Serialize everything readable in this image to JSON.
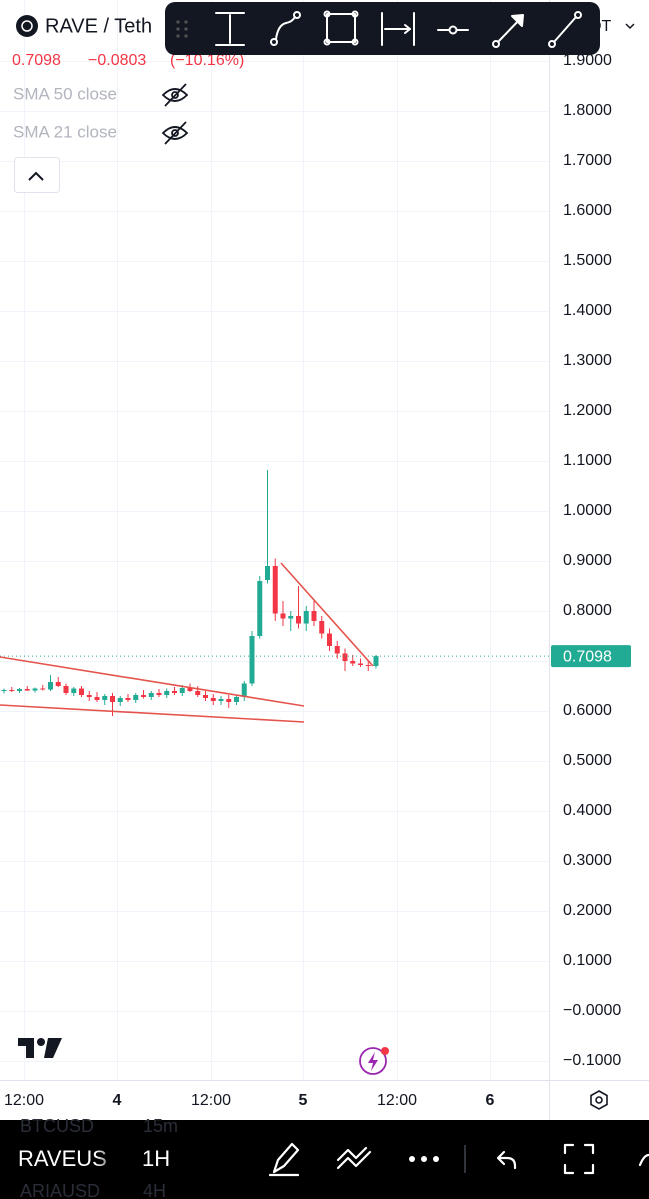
{
  "header": {
    "symbol": "RAVE / Teth",
    "symbol_tail": "DT",
    "change": "−0.0803",
    "change_pct": "(−10.16%)"
  },
  "indicators": [
    "SMA 50 close",
    "SMA 21 close"
  ],
  "chart": {
    "type": "candlestick",
    "up_color": "#22ab94",
    "down_color": "#f23645",
    "ylim": [
      -0.1,
      1.9
    ],
    "yticks": [
      {
        "value": 1.9,
        "label": "1.9000"
      },
      {
        "value": 1.8,
        "label": "1.8000"
      },
      {
        "value": 1.7,
        "label": "1.7000"
      },
      {
        "value": 1.6,
        "label": "1.6000"
      },
      {
        "value": 1.5,
        "label": "1.5000"
      },
      {
        "value": 1.4,
        "label": "1.4000"
      },
      {
        "value": 1.3,
        "label": "1.3000"
      },
      {
        "value": 1.2,
        "label": "1.2000"
      },
      {
        "value": 1.1,
        "label": "1.1000"
      },
      {
        "value": 1.0,
        "label": "1.0000"
      },
      {
        "value": 0.9,
        "label": "0.9000"
      },
      {
        "value": 0.8,
        "label": "0.8000"
      },
      {
        "value": 0.7,
        "label": "0.7000"
      },
      {
        "value": 0.6,
        "label": "0.6000"
      },
      {
        "value": 0.5,
        "label": "0.5000"
      },
      {
        "value": 0.4,
        "label": "0.4000"
      },
      {
        "value": 0.3,
        "label": "0.3000"
      },
      {
        "value": 0.2,
        "label": "0.2000"
      },
      {
        "value": 0.1,
        "label": "0.1000"
      },
      {
        "value": 0,
        "label": "−0.0000"
      },
      {
        "value": -0.1,
        "label": "−0.1000"
      }
    ],
    "xticks": [
      "12:00",
      "4",
      "12:00",
      "5",
      "12:00",
      "6"
    ],
    "last_price": {
      "value": 0.7098,
      "label": "0.7098"
    },
    "candles": [
      [
        0.64,
        0.645,
        0.635,
        0.642
      ],
      [
        0.642,
        0.648,
        0.638,
        0.64
      ],
      [
        0.64,
        0.646,
        0.636,
        0.644
      ],
      [
        0.644,
        0.65,
        0.64,
        0.641
      ],
      [
        0.641,
        0.647,
        0.637,
        0.645
      ],
      [
        0.645,
        0.652,
        0.641,
        0.643
      ],
      [
        0.643,
        0.672,
        0.64,
        0.658
      ],
      [
        0.658,
        0.668,
        0.648,
        0.65
      ],
      [
        0.65,
        0.655,
        0.632,
        0.636
      ],
      [
        0.636,
        0.648,
        0.63,
        0.645
      ],
      [
        0.645,
        0.65,
        0.628,
        0.632
      ],
      [
        0.632,
        0.64,
        0.62,
        0.628
      ],
      [
        0.628,
        0.638,
        0.618,
        0.622
      ],
      [
        0.622,
        0.634,
        0.612,
        0.63
      ],
      [
        0.63,
        0.636,
        0.59,
        0.618
      ],
      [
        0.618,
        0.63,
        0.61,
        0.626
      ],
      [
        0.626,
        0.634,
        0.618,
        0.622
      ],
      [
        0.622,
        0.636,
        0.616,
        0.632
      ],
      [
        0.632,
        0.642,
        0.625,
        0.628
      ],
      [
        0.628,
        0.64,
        0.622,
        0.636
      ],
      [
        0.636,
        0.644,
        0.628,
        0.632
      ],
      [
        0.632,
        0.645,
        0.626,
        0.64
      ],
      [
        0.64,
        0.648,
        0.632,
        0.636
      ],
      [
        0.636,
        0.652,
        0.63,
        0.646
      ],
      [
        0.646,
        0.655,
        0.638,
        0.64
      ],
      [
        0.64,
        0.65,
        0.628,
        0.632
      ],
      [
        0.632,
        0.64,
        0.62,
        0.626
      ],
      [
        0.626,
        0.634,
        0.612,
        0.62
      ],
      [
        0.62,
        0.63,
        0.612,
        0.624
      ],
      [
        0.624,
        0.632,
        0.606,
        0.618
      ],
      [
        0.618,
        0.632,
        0.612,
        0.628
      ],
      [
        0.628,
        0.66,
        0.62,
        0.655
      ],
      [
        0.655,
        0.76,
        0.65,
        0.75
      ],
      [
        0.75,
        0.87,
        0.745,
        0.86
      ],
      [
        0.862,
        1.082,
        0.855,
        0.89
      ],
      [
        0.89,
        0.905,
        0.78,
        0.795
      ],
      [
        0.795,
        0.82,
        0.77,
        0.785
      ],
      [
        0.785,
        0.8,
        0.76,
        0.79
      ],
      [
        0.79,
        0.85,
        0.765,
        0.775
      ],
      [
        0.775,
        0.81,
        0.76,
        0.8
      ],
      [
        0.8,
        0.82,
        0.77,
        0.78
      ],
      [
        0.78,
        0.79,
        0.745,
        0.755
      ],
      [
        0.755,
        0.765,
        0.72,
        0.73
      ],
      [
        0.73,
        0.74,
        0.705,
        0.715
      ],
      [
        0.715,
        0.725,
        0.68,
        0.7
      ],
      [
        0.7,
        0.712,
        0.69,
        0.695
      ],
      [
        0.695,
        0.705,
        0.688,
        0.692
      ],
      [
        0.692,
        0.7,
        0.68,
        0.69
      ],
      [
        0.69,
        0.712,
        0.685,
        0.7098
      ]
    ]
  },
  "bottom_bar": {
    "symbols": [
      "BTCUSD",
      "RAVEUS",
      "ARIAUSD"
    ],
    "intervals": [
      "15m",
      "1H",
      "4H"
    ]
  }
}
